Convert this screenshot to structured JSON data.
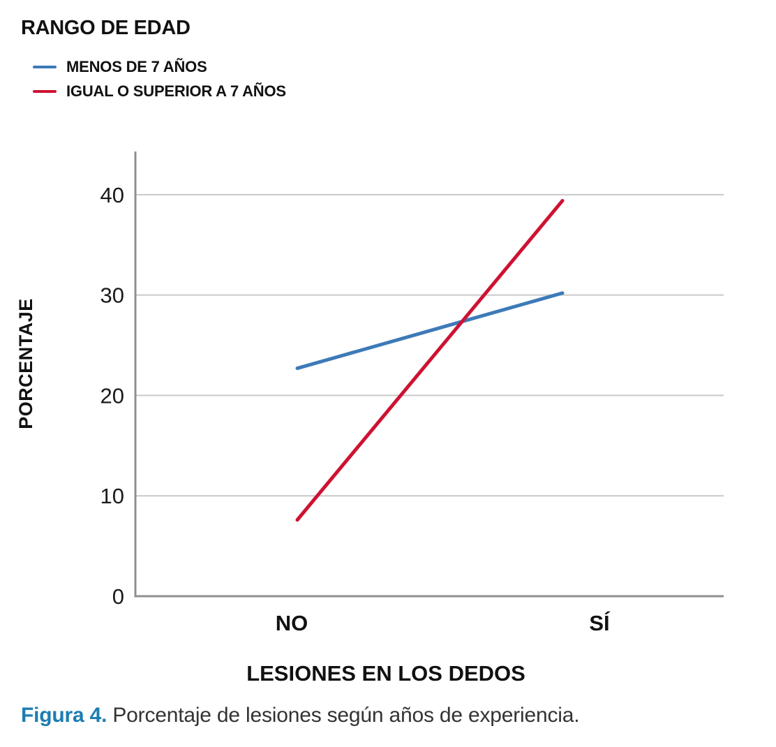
{
  "legend": {
    "title": "RANGO DE EDAD",
    "items": [
      {
        "label": "MENOS DE 7 AÑOS",
        "color": "#3D7AB8"
      },
      {
        "label": "IGUAL O SUPERIOR A 7 AÑOS",
        "color": "#CE1232"
      }
    ]
  },
  "chart_data": {
    "type": "line",
    "title": "",
    "categories": [
      "NO",
      "SÍ"
    ],
    "series": [
      {
        "name": "MENOS DE 7 AÑOS",
        "color": "#3D7AB8",
        "values": [
          22.7,
          30.2
        ]
      },
      {
        "name": "IGUAL O SUPERIOR A 7 AÑOS",
        "color": "#CE1232",
        "values": [
          7.6,
          39.4
        ]
      }
    ],
    "xlabel": "LESIONES EN LOS DEDOS",
    "ylabel": "PORCENTAJE",
    "y_ticks": [
      0,
      10,
      20,
      30,
      40
    ],
    "ylim": [
      0,
      44.3
    ],
    "grid": true,
    "legend_position": "top-left",
    "legend_title": "RANGO DE EDAD"
  },
  "caption": {
    "prefix": "Figura 4.",
    "text": " Porcentaje de lesiones según años de experiencia."
  },
  "colors": {
    "axis": "#8F8F8F",
    "grid": "#C9C9C9",
    "caption_accent": "#1C7DB2",
    "text": "#111111"
  }
}
